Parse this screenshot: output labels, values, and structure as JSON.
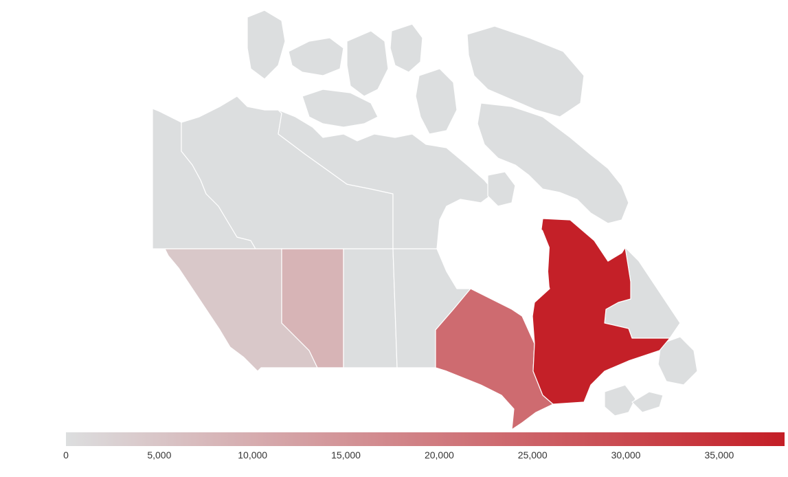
{
  "colors": {
    "no_data": "#dcdedf",
    "scale_low": "#dcdedf",
    "scale_high": "#c41e26"
  },
  "legend": {
    "ticks": [
      "0",
      "5,000",
      "10,000",
      "15,000",
      "20,000",
      "25,000",
      "30,000",
      "35,000"
    ],
    "min": 0,
    "max": 38500
  },
  "chart_data": {
    "type": "choropleth",
    "regions": [
      {
        "id": "quebec",
        "value": 38000
      },
      {
        "id": "ontario",
        "value": 23000
      },
      {
        "id": "alberta",
        "value": 8500
      },
      {
        "id": "british-columbia",
        "value": 4500
      },
      {
        "id": "saskatchewan",
        "value": 0
      },
      {
        "id": "manitoba",
        "value": 0
      }
    ]
  }
}
